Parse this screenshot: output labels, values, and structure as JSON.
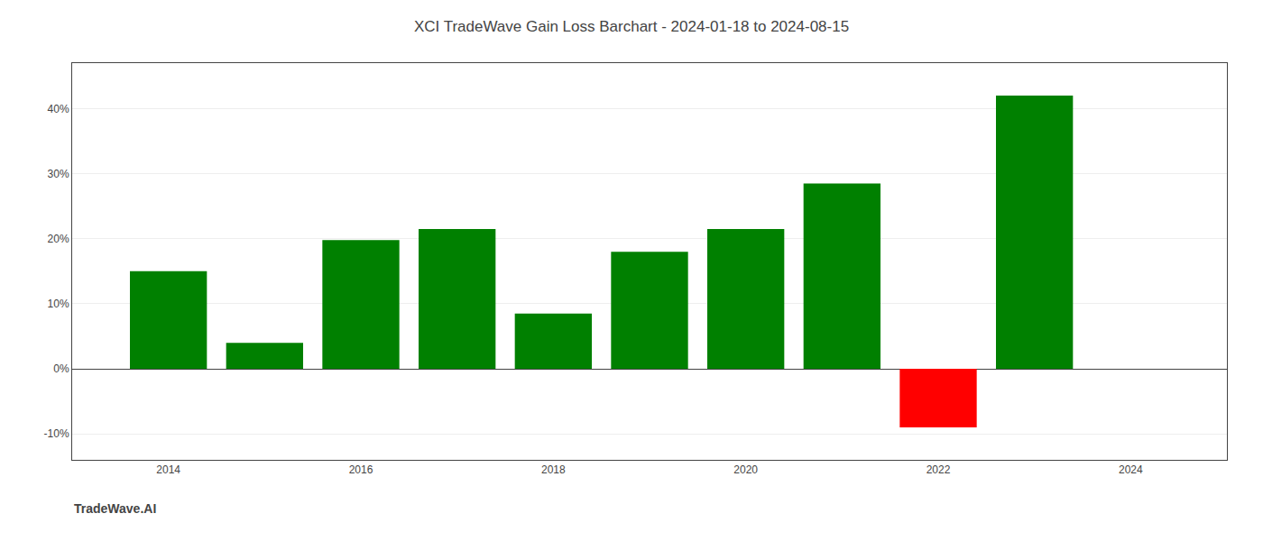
{
  "chart_data": {
    "type": "bar",
    "title": "XCI TradeWave Gain Loss Barchart - 2024-01-18 to 2024-08-15",
    "annotations": [
      "TradeWave.AI"
    ],
    "x": [
      2014,
      2015,
      2016,
      2017,
      2018,
      2019,
      2020,
      2021,
      2022,
      2023
    ],
    "values": [
      15.0,
      4.0,
      19.8,
      21.5,
      8.5,
      18.0,
      21.5,
      28.5,
      -9.0,
      42.0
    ],
    "colors": [
      "#008000",
      "#008000",
      "#008000",
      "#008000",
      "#008000",
      "#008000",
      "#008000",
      "#008000",
      "#ff0000",
      "#008000"
    ],
    "xlim": [
      2013.0,
      2025.0
    ],
    "xticks": [
      2014,
      2016,
      2018,
      2020,
      2022,
      2024
    ],
    "ylim": [
      -14,
      47
    ],
    "yticks": [
      {
        "value": -10,
        "label": "-10%"
      },
      {
        "value": 0,
        "label": "0%"
      },
      {
        "value": 10,
        "label": "10%"
      },
      {
        "value": 20,
        "label": "20%"
      },
      {
        "value": 30,
        "label": "30%"
      },
      {
        "value": 40,
        "label": "40%"
      }
    ],
    "grid": true
  }
}
